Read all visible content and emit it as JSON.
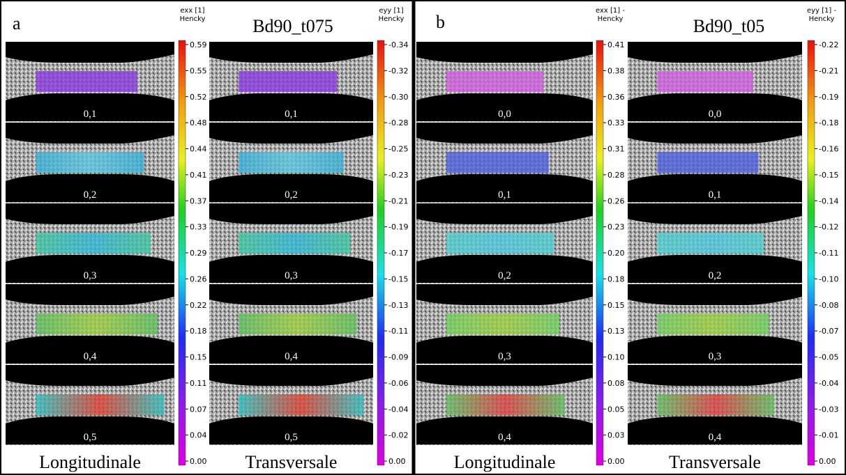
{
  "panels": [
    {
      "label": "a",
      "title": "Bd90_t075",
      "columns": [
        {
          "colorbar": {
            "title": [
              "exx [1]",
              "Hencky"
            ],
            "ticks": [
              "0.59",
              "0.55",
              "0.52",
              "0.48",
              "0.44",
              "0.41",
              "0.37",
              "0.33",
              "0.29",
              "0.26",
              "0.22",
              "0.18",
              "0.15",
              "0.11",
              "0.07",
              "0.04",
              "0.00"
            ]
          },
          "steps": [
            "0,1",
            "0,2",
            "0,3",
            "0,4",
            "0,5"
          ],
          "caption": "Longitudinale"
        },
        {
          "colorbar": {
            "title": [
              "eyy [1]",
              "Hencky"
            ],
            "ticks": [
              "-0.34",
              "-0.32",
              "-0.30",
              "-0.28",
              "-0.25",
              "-0.23",
              "-0.21",
              "-0.19",
              "-0.17",
              "-0.15",
              "-0.13",
              "-0.11",
              "-0.09",
              "-0.06",
              "-0.04",
              "-0.02",
              "0.00"
            ]
          },
          "steps": [
            "0,1",
            "0,2",
            "0,3",
            "0,4",
            "0,5"
          ],
          "caption": "Transversale"
        }
      ]
    },
    {
      "label": "b",
      "title": "Bd90_t05",
      "columns": [
        {
          "colorbar": {
            "title": [
              "exx [1] -",
              "Hencky"
            ],
            "ticks": [
              "0.41",
              "0.38",
              "0.36",
              "0.33",
              "0.31",
              "0.28",
              "0.26",
              "0.23",
              "0.20",
              "0.18",
              "0.15",
              "0.13",
              "0.10",
              "0.08",
              "0.05",
              "0.03",
              "0.00"
            ]
          },
          "steps": [
            "0,0",
            "0,1",
            "0,2",
            "0,3",
            "0,4"
          ],
          "caption": "Longitudinale"
        },
        {
          "colorbar": {
            "title": [
              "eyy [1] -",
              "Hencky"
            ],
            "ticks": [
              "-0.22",
              "-0.21",
              "-0.19",
              "-0.18",
              "-0.16",
              "-0.15",
              "-0.14",
              "-0.12",
              "-0.11",
              "-0.10",
              "-0.08",
              "-0.07",
              "-0.05",
              "-0.04",
              "-0.03",
              "-0.01",
              "0.00"
            ]
          },
          "steps": [
            "0,0",
            "0,1",
            "0,2",
            "0,3",
            "0,4"
          ],
          "caption": "Transversale"
        }
      ]
    }
  ]
}
